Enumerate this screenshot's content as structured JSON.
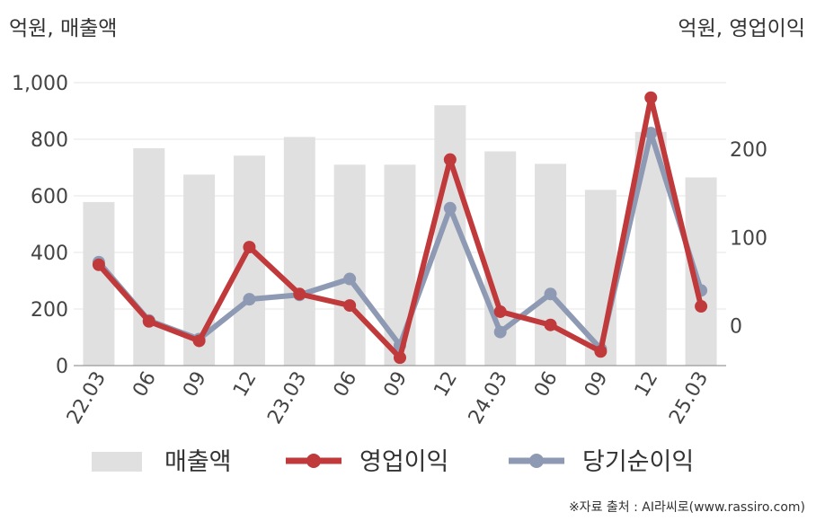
{
  "header": {
    "left_unit": "억원, 매출액",
    "right_unit": "억원, 영업이익"
  },
  "source": "※자료 출처 : AI라씨로(www.rassiro.com)",
  "colors": {
    "bar": "#e0e0e0",
    "operating_profit": "#c0393b",
    "net_income": "#8e9ab3",
    "grid": "#e6e6e6",
    "axis": "#999999"
  },
  "chart_data": {
    "type": "bar",
    "categories": [
      "22.03",
      "06",
      "09",
      "12",
      "23.03",
      "06",
      "09",
      "12",
      "24.03",
      "06",
      "09",
      "12",
      "25.03"
    ],
    "left_axis": {
      "ylim": [
        0,
        1000
      ],
      "ticks": [
        "0",
        "200",
        "400",
        "600",
        "800",
        "1,000"
      ]
    },
    "right_axis": {
      "ylim": [
        -45,
        275
      ],
      "ticks": [
        "0",
        "100",
        "200"
      ]
    },
    "grid": true,
    "legend_position": "bottom",
    "series": [
      {
        "name": "매출액",
        "type": "bar",
        "axis": "left",
        "values": [
          578,
          768,
          675,
          742,
          808,
          710,
          710,
          920,
          757,
          713,
          621,
          826,
          665
        ]
      },
      {
        "name": "영업이익",
        "type": "line",
        "axis": "right",
        "values": [
          69,
          5,
          -17,
          89,
          36,
          23,
          -36,
          188,
          16,
          1,
          -29,
          258,
          22
        ]
      },
      {
        "name": "당기순이익",
        "type": "line",
        "axis": "right",
        "values": [
          72,
          6,
          -15,
          30,
          35,
          53,
          -22,
          133,
          -7,
          36,
          -26,
          218,
          40
        ]
      }
    ]
  }
}
